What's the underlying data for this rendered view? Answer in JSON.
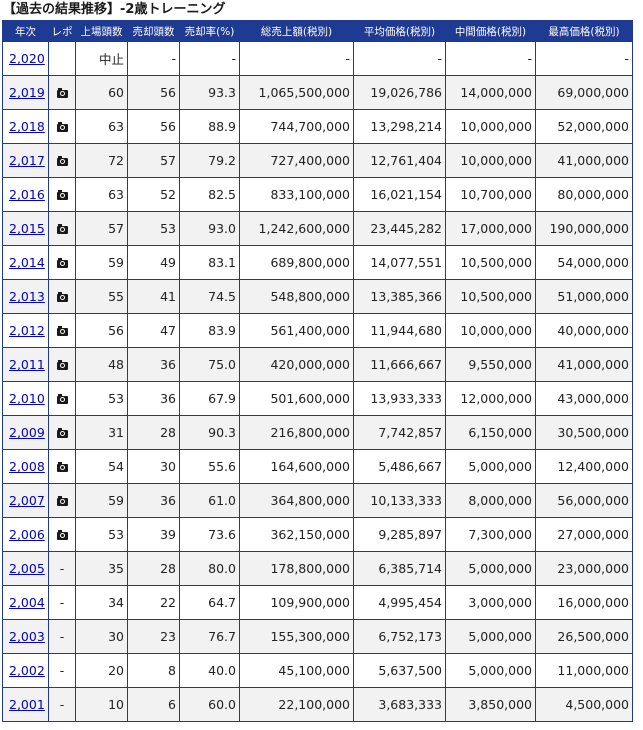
{
  "title": "【過去の結果推移】-2歳トレーニング",
  "headers": [
    "年次",
    "レポ",
    "上場頭数",
    "売却頭数",
    "売却率(%)",
    "総売上額(税別)",
    "平均価格(税別)",
    "中間価格(税別)",
    "最高価格(税別)"
  ],
  "rows": [
    {
      "year": "2,020",
      "report": "",
      "listed": "中止",
      "sold": "-",
      "rate": "-",
      "total": "-",
      "avg": "-",
      "median": "-",
      "max": "-"
    },
    {
      "year": "2,019",
      "report": "camera",
      "listed": "60",
      "sold": "56",
      "rate": "93.3",
      "total": "1,065,500,000",
      "avg": "19,026,786",
      "median": "14,000,000",
      "max": "69,000,000"
    },
    {
      "year": "2,018",
      "report": "camera",
      "listed": "63",
      "sold": "56",
      "rate": "88.9",
      "total": "744,700,000",
      "avg": "13,298,214",
      "median": "10,000,000",
      "max": "52,000,000"
    },
    {
      "year": "2,017",
      "report": "camera",
      "listed": "72",
      "sold": "57",
      "rate": "79.2",
      "total": "727,400,000",
      "avg": "12,761,404",
      "median": "10,000,000",
      "max": "41,000,000"
    },
    {
      "year": "2,016",
      "report": "camera",
      "listed": "63",
      "sold": "52",
      "rate": "82.5",
      "total": "833,100,000",
      "avg": "16,021,154",
      "median": "10,700,000",
      "max": "80,000,000"
    },
    {
      "year": "2,015",
      "report": "camera",
      "listed": "57",
      "sold": "53",
      "rate": "93.0",
      "total": "1,242,600,000",
      "avg": "23,445,282",
      "median": "17,000,000",
      "max": "190,000,000"
    },
    {
      "year": "2,014",
      "report": "camera",
      "listed": "59",
      "sold": "49",
      "rate": "83.1",
      "total": "689,800,000",
      "avg": "14,077,551",
      "median": "10,500,000",
      "max": "54,000,000"
    },
    {
      "year": "2,013",
      "report": "camera",
      "listed": "55",
      "sold": "41",
      "rate": "74.5",
      "total": "548,800,000",
      "avg": "13,385,366",
      "median": "10,500,000",
      "max": "51,000,000"
    },
    {
      "year": "2,012",
      "report": "camera",
      "listed": "56",
      "sold": "47",
      "rate": "83.9",
      "total": "561,400,000",
      "avg": "11,944,680",
      "median": "10,000,000",
      "max": "40,000,000"
    },
    {
      "year": "2,011",
      "report": "camera",
      "listed": "48",
      "sold": "36",
      "rate": "75.0",
      "total": "420,000,000",
      "avg": "11,666,667",
      "median": "9,550,000",
      "max": "41,000,000"
    },
    {
      "year": "2,010",
      "report": "camera",
      "listed": "53",
      "sold": "36",
      "rate": "67.9",
      "total": "501,600,000",
      "avg": "13,933,333",
      "median": "12,000,000",
      "max": "43,000,000"
    },
    {
      "year": "2,009",
      "report": "camera",
      "listed": "31",
      "sold": "28",
      "rate": "90.3",
      "total": "216,800,000",
      "avg": "7,742,857",
      "median": "6,150,000",
      "max": "30,500,000"
    },
    {
      "year": "2,008",
      "report": "camera",
      "listed": "54",
      "sold": "30",
      "rate": "55.6",
      "total": "164,600,000",
      "avg": "5,486,667",
      "median": "5,000,000",
      "max": "12,400,000"
    },
    {
      "year": "2,007",
      "report": "camera",
      "listed": "59",
      "sold": "36",
      "rate": "61.0",
      "total": "364,800,000",
      "avg": "10,133,333",
      "median": "8,000,000",
      "max": "56,000,000"
    },
    {
      "year": "2,006",
      "report": "camera",
      "listed": "53",
      "sold": "39",
      "rate": "73.6",
      "total": "362,150,000",
      "avg": "9,285,897",
      "median": "7,300,000",
      "max": "27,000,000"
    },
    {
      "year": "2,005",
      "report": "-",
      "listed": "35",
      "sold": "28",
      "rate": "80.0",
      "total": "178,800,000",
      "avg": "6,385,714",
      "median": "5,000,000",
      "max": "23,000,000"
    },
    {
      "year": "2,004",
      "report": "-",
      "listed": "34",
      "sold": "22",
      "rate": "64.7",
      "total": "109,900,000",
      "avg": "4,995,454",
      "median": "3,000,000",
      "max": "16,000,000"
    },
    {
      "year": "2,003",
      "report": "-",
      "listed": "30",
      "sold": "23",
      "rate": "76.7",
      "total": "155,300,000",
      "avg": "6,752,173",
      "median": "5,000,000",
      "max": "26,500,000"
    },
    {
      "year": "2,002",
      "report": "-",
      "listed": "20",
      "sold": "8",
      "rate": "40.0",
      "total": "45,100,000",
      "avg": "5,637,500",
      "median": "5,000,000",
      "max": "11,000,000"
    },
    {
      "year": "2,001",
      "report": "-",
      "listed": "10",
      "sold": "6",
      "rate": "60.0",
      "total": "22,100,000",
      "avg": "3,683,333",
      "median": "3,850,000",
      "max": "4,500,000"
    }
  ],
  "colors": {
    "header_bg": "#1f3a93",
    "header_text": "#ffffff",
    "link": "#0000cc",
    "row_alt": "#f2f2f2"
  }
}
